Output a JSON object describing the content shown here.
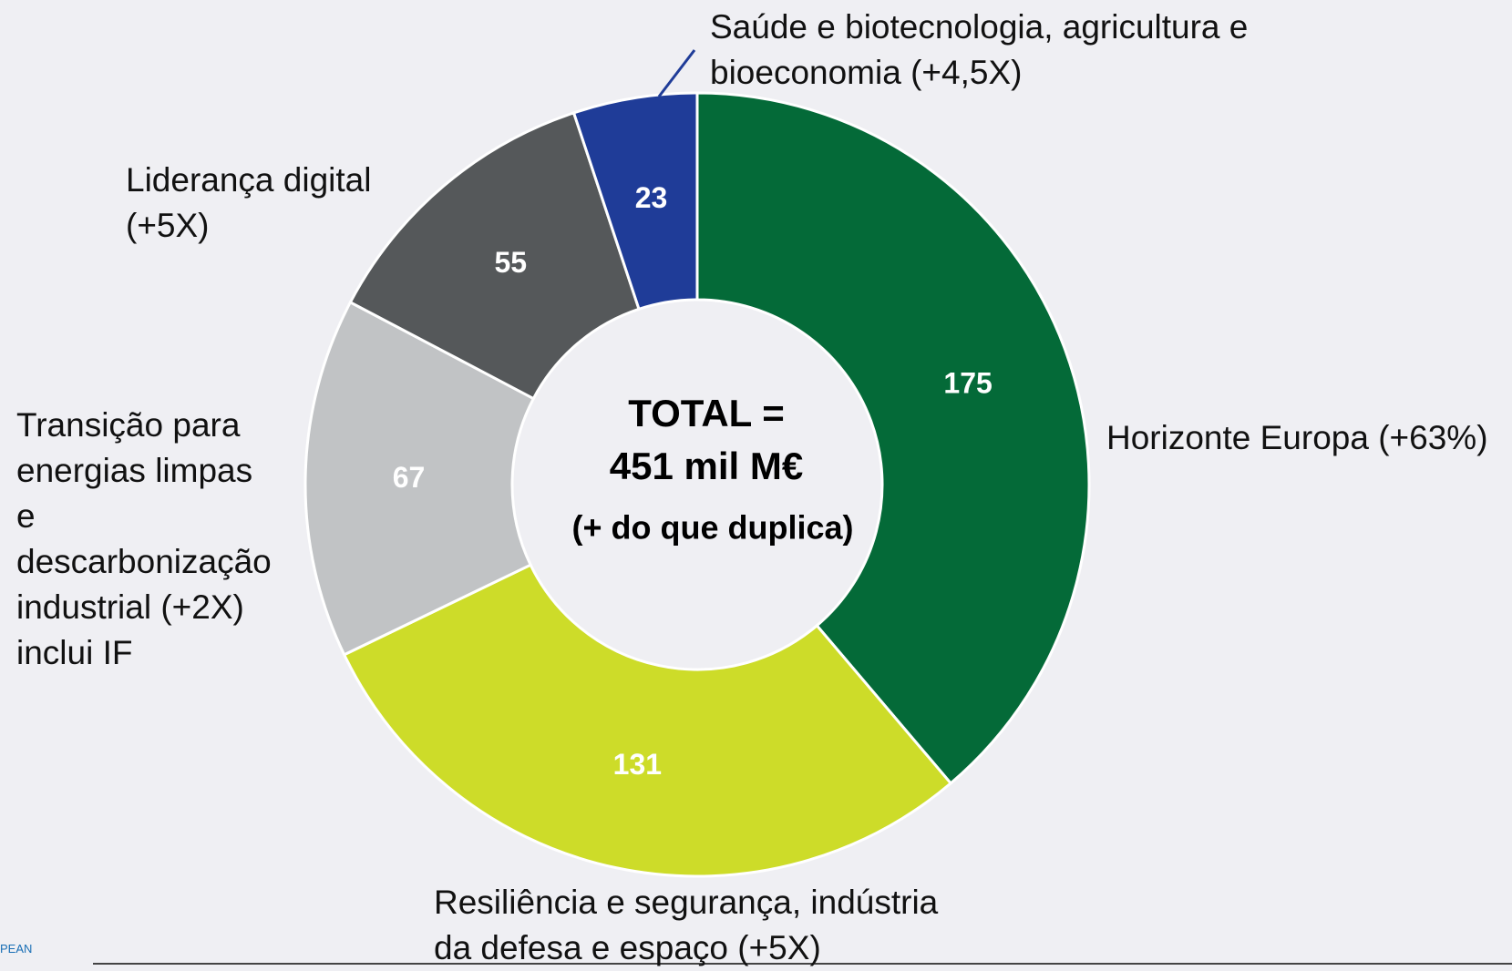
{
  "chart_data": {
    "type": "donut",
    "categories": [
      "Horizonte Europa (+63%)",
      "Resiliência e segurança, indústria\nda defesa e espaço (+5X)",
      "Transição para\nenergias limpas\ne\ndescarbonização\nindustrial (+2X)\ninclui IF",
      "Liderança digital\n(+5X)",
      "Saúde e biotecnologia, agricultura e\nbioeconomia (+4,5X)"
    ],
    "values": [
      175,
      131,
      67,
      55,
      23
    ],
    "colors": [
      "#046a38",
      "#cddc29",
      "#c1c3c5",
      "#55585a",
      "#1f3c98"
    ],
    "center_text": [
      "TOTAL =",
      "451 mil M€",
      "(+ do que duplica)"
    ],
    "footer_fragment": "PEAN"
  }
}
